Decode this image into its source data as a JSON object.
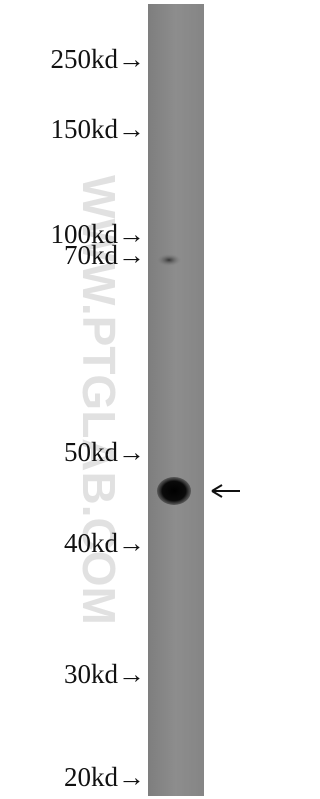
{
  "markers": [
    "250kd→",
    "150kd→",
    "100kd→",
    "70kd→",
    "50kd→",
    "40kd→",
    "30kd→",
    "20kd→"
  ],
  "watermark": "WWW.PTGLAB.COM"
}
